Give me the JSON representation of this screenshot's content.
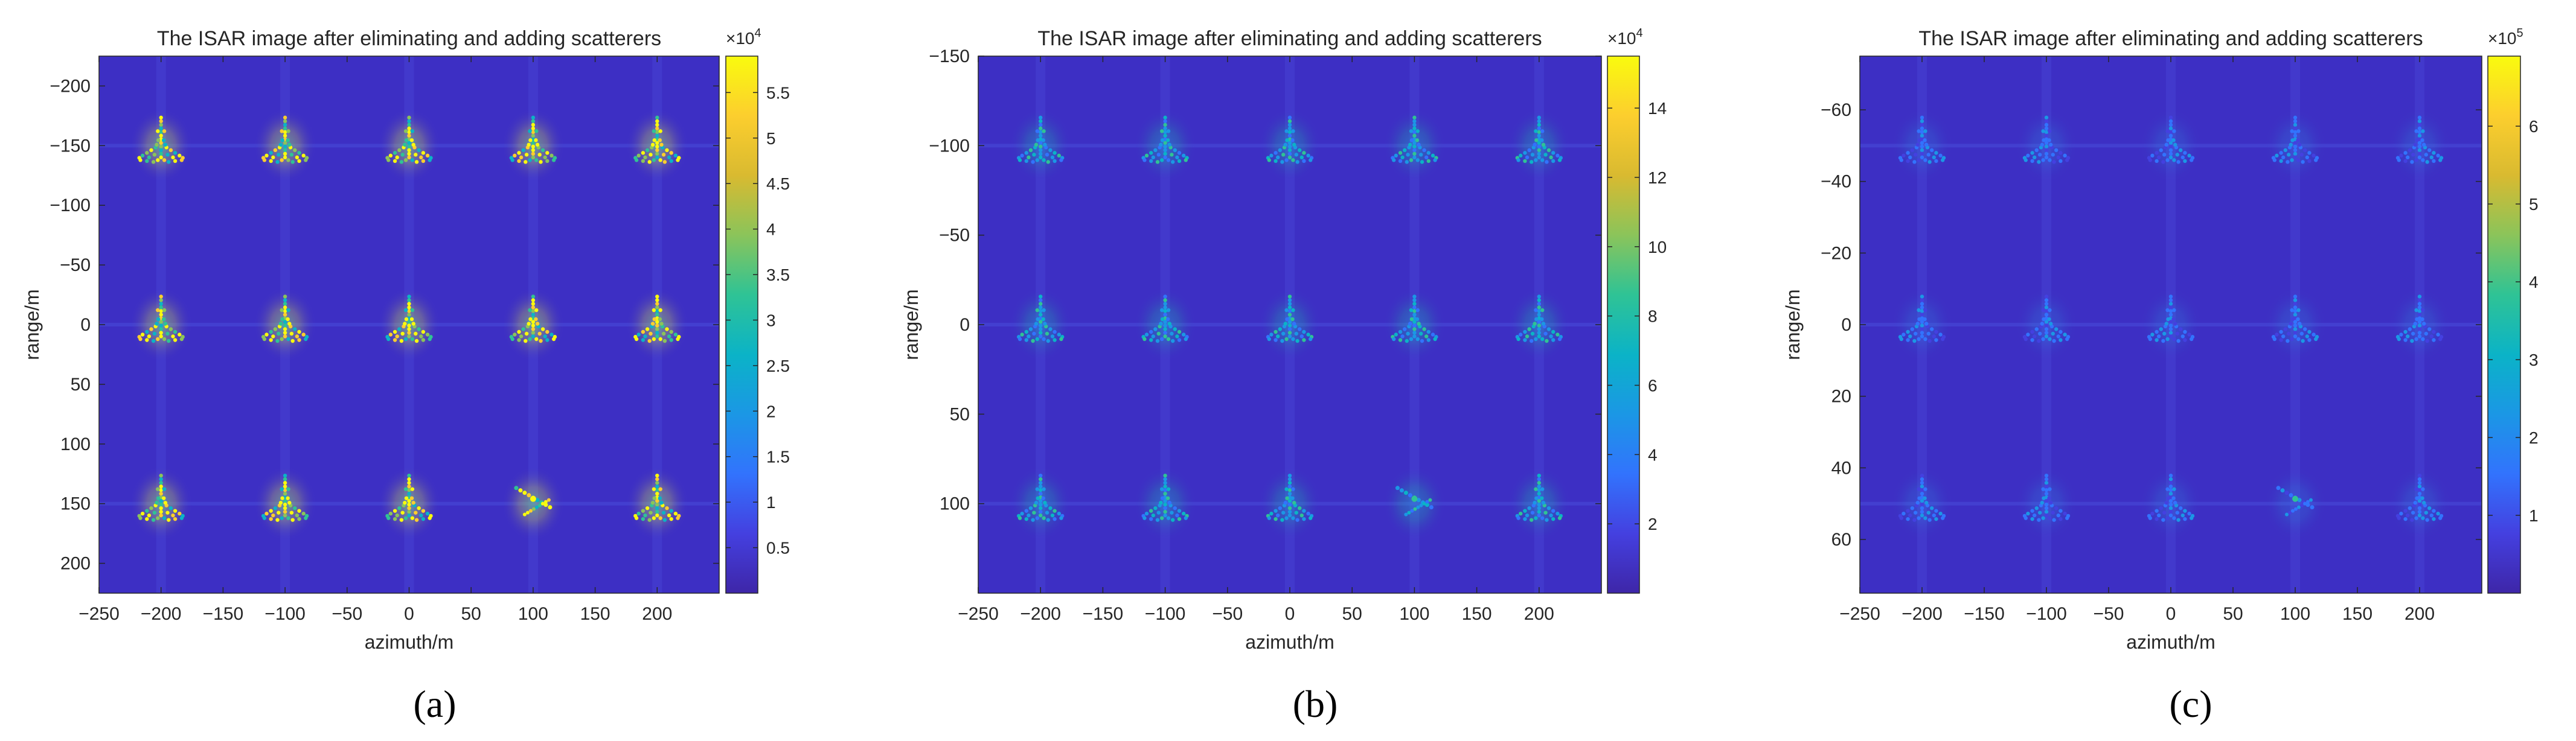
{
  "chart_data": [
    {
      "type": "heatmap",
      "panel_label": "(a)",
      "title": "The ISAR image after eliminating and adding scatterers",
      "xlabel": "azimuth/m",
      "ylabel": "range/m",
      "xlim": [
        -250,
        250
      ],
      "ylim": [
        -225,
        225
      ],
      "y_reversed": true,
      "xticks": [
        -250,
        -200,
        -150,
        -100,
        -50,
        0,
        50,
        100,
        150,
        200
      ],
      "yticks": [
        -200,
        -150,
        -100,
        -50,
        0,
        50,
        100,
        150,
        200
      ],
      "colorbar": {
        "min": 0,
        "max": 5.9,
        "exponent_label": "×10",
        "exponent_power": "4",
        "ticks": [
          0.5,
          1,
          1.5,
          2,
          2.5,
          3,
          3.5,
          4,
          4.5,
          5,
          5.5
        ]
      },
      "targets": {
        "azimuth": [
          -200,
          -100,
          0,
          100,
          200
        ],
        "range": [
          -150,
          0,
          150
        ],
        "special": {
          "azimuth": 100,
          "range": 150,
          "description": "rotated scatterer"
        }
      },
      "intensity": "bright"
    },
    {
      "type": "heatmap",
      "panel_label": "(b)",
      "title": "The ISAR image after eliminating and adding scatterers",
      "xlabel": "azimuth/m",
      "ylabel": "range/m",
      "xlim": [
        -250,
        250
      ],
      "ylim": [
        -150,
        150
      ],
      "y_reversed": true,
      "xticks": [
        -250,
        -200,
        -150,
        -100,
        -50,
        0,
        50,
        100,
        150,
        200
      ],
      "yticks": [
        -150,
        -100,
        -50,
        0,
        50,
        100
      ],
      "colorbar": {
        "min": 0,
        "max": 15.5,
        "exponent_label": "×10",
        "exponent_power": "4",
        "ticks": [
          2,
          4,
          6,
          8,
          10,
          12,
          14
        ]
      },
      "targets": {
        "azimuth": [
          -200,
          -100,
          0,
          100,
          200
        ],
        "range": [
          -100,
          0,
          100
        ],
        "special": {
          "azimuth": 100,
          "range": 100,
          "description": "rotated scatterer"
        }
      },
      "intensity": "medium"
    },
    {
      "type": "heatmap",
      "panel_label": "(c)",
      "title": "The ISAR image after eliminating and adding scatterers",
      "xlabel": "azimuth/m",
      "ylabel": "range/m",
      "xlim": [
        -250,
        250
      ],
      "ylim": [
        -75,
        75
      ],
      "y_reversed": true,
      "xticks": [
        -250,
        -200,
        -150,
        -100,
        -50,
        0,
        50,
        100,
        150,
        200
      ],
      "yticks": [
        -60,
        -40,
        -20,
        0,
        20,
        40,
        60
      ],
      "colorbar": {
        "min": 0,
        "max": 6.9,
        "exponent_label": "×10",
        "exponent_power": "5",
        "ticks": [
          1,
          2,
          3,
          4,
          5,
          6
        ]
      },
      "targets": {
        "azimuth": [
          -200,
          -100,
          0,
          100,
          200
        ],
        "range": [
          -50,
          0,
          50
        ],
        "special": {
          "azimuth": 100,
          "range": 50,
          "description": "rotated scatterer"
        }
      },
      "intensity": "faint"
    }
  ],
  "colors": {
    "background_field": "#3d2fc4",
    "parula": [
      "#3e26a8",
      "#4440e0",
      "#3273fd",
      "#1b97e5",
      "#0bb3c7",
      "#2fc395",
      "#8bc45a",
      "#d9ba30",
      "#fcce2e",
      "#f9fb0e"
    ]
  }
}
